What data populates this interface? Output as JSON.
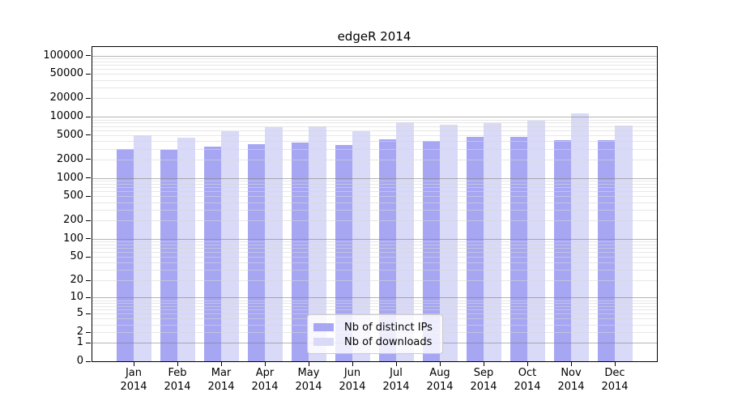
{
  "chart_data": {
    "type": "bar",
    "title": "edgeR 2014",
    "categories": [
      "Jan",
      "Feb",
      "Mar",
      "Apr",
      "May",
      "Jun",
      "Jul",
      "Aug",
      "Sep",
      "Oct",
      "Nov",
      "Dec"
    ],
    "x_tick_second_line": "2014",
    "series": [
      {
        "name": "Nb of distinct IPs",
        "color": "#a6a6f3",
        "values": [
          2950,
          2850,
          3250,
          3550,
          3800,
          3500,
          4300,
          4000,
          4700,
          4700,
          4200,
          4100
        ]
      },
      {
        "name": "Nb of downloads",
        "color": "#d9d9f8",
        "values": [
          4900,
          4500,
          5800,
          6650,
          7000,
          5800,
          8100,
          7400,
          7900,
          8600,
          11400,
          7200
        ]
      }
    ],
    "y_axis": {
      "scale": "log10(value+1)",
      "ticks": [
        0,
        1,
        2,
        5,
        10,
        20,
        50,
        100,
        200,
        500,
        1000,
        2000,
        5000,
        10000,
        20000,
        50000,
        100000
      ],
      "max": 138000
    },
    "legend": {
      "position": "lower center"
    },
    "grid": true
  },
  "style": {
    "major_grid": "rgba(130,130,130,0.6)",
    "minor_grid": "rgba(215,215,215,0.6)",
    "spine": "#000000",
    "background": "#ffffff"
  }
}
